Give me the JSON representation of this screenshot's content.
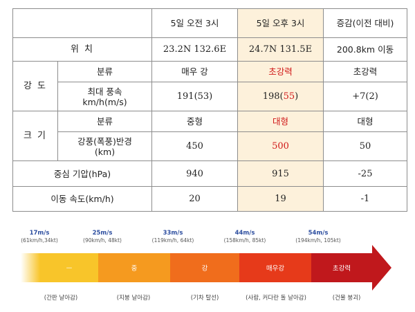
{
  "table": {
    "header": {
      "col1": "5일 오전 3시",
      "col2": "5일 오후 3시",
      "col3": "증감(이전 대비)"
    },
    "location": {
      "label": "위 치",
      "v1": "23.2N 132.6E",
      "v2": "24.7N 131.5E",
      "v3": "200.8km 이동"
    },
    "intensity": {
      "group_label": "강 도",
      "class_label": "분류",
      "class_v1": "매우 강",
      "class_v2": "초강력",
      "class_v3": "초강력",
      "wind_label_line1": "최대 풍속",
      "wind_label_line2": "km/h(m/s)",
      "wind_v1": "191(53)",
      "wind_v2_main": "198(",
      "wind_v2_red": "55",
      "wind_v2_end": ")",
      "wind_v3": "+7(2)"
    },
    "size": {
      "group_label": "크 기",
      "class_label": "분류",
      "class_v1": "중형",
      "class_v2": "대형",
      "class_v3": "대형",
      "radius_label_line1": "강풍(폭풍)반경",
      "radius_label_line2": "(km)",
      "radius_v1": "450",
      "radius_v2": "500",
      "radius_v3": "50"
    },
    "pressure": {
      "label": "중심 기압(hPa)",
      "v1": "940",
      "v2": "915",
      "v3": "-25"
    },
    "speed": {
      "label": "이동 속도(km/h)",
      "v1": "20",
      "v2": "19",
      "v3": "-1"
    }
  },
  "scale": {
    "thresholds": [
      {
        "value": "17m/s",
        "sub": "(61km/h,34kt)"
      },
      {
        "value": "25m/s",
        "sub": "(90km/h, 48kt)"
      },
      {
        "value": "33m/s",
        "sub": "(119km/h, 64kt)"
      },
      {
        "value": "44m/s",
        "sub": "(158km/h, 85kt)"
      },
      {
        "value": "54m/s",
        "sub": "(194km/h, 105kt)"
      }
    ],
    "categories": [
      "ㅡ",
      "중",
      "강",
      "매우강",
      "초강력"
    ],
    "descriptions": [
      "(간판 날아감)",
      "(지붕 날아감)",
      "(기차 탈선)",
      "(사람, 커다란 돌 날아감)",
      "(건물 붕괴)"
    ],
    "colors": [
      "#f8c52a",
      "#f59a1f",
      "#f06d1c",
      "#e63a1a",
      "#c0181c"
    ]
  }
}
